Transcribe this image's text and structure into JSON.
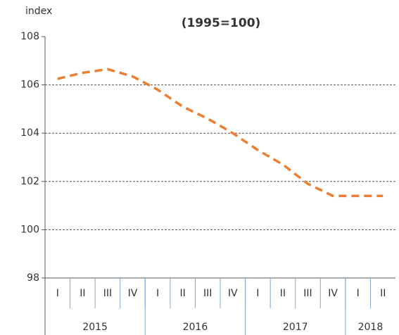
{
  "chart_data": {
    "type": "line",
    "title": "(1995=100)",
    "y_label": "index",
    "categories": [
      "I",
      "II",
      "III",
      "IV",
      "I",
      "II",
      "III",
      "IV",
      "I",
      "II",
      "III",
      "IV",
      "I",
      "II"
    ],
    "year_groups": [
      {
        "label": "2015",
        "count": 4
      },
      {
        "label": "2016",
        "count": 4
      },
      {
        "label": "2017",
        "count": 4
      },
      {
        "label": "2018",
        "count": 2
      }
    ],
    "series": [
      {
        "name": "index",
        "color": "#ed7d31",
        "values": [
          106.25,
          106.5,
          106.65,
          106.35,
          105.8,
          105.1,
          104.6,
          104.0,
          103.3,
          102.7,
          101.9,
          101.4,
          101.4,
          101.4
        ]
      }
    ],
    "ylim": [
      98,
      108
    ],
    "yticks": [
      98,
      100,
      102,
      104,
      106,
      108
    ],
    "grid": true
  }
}
